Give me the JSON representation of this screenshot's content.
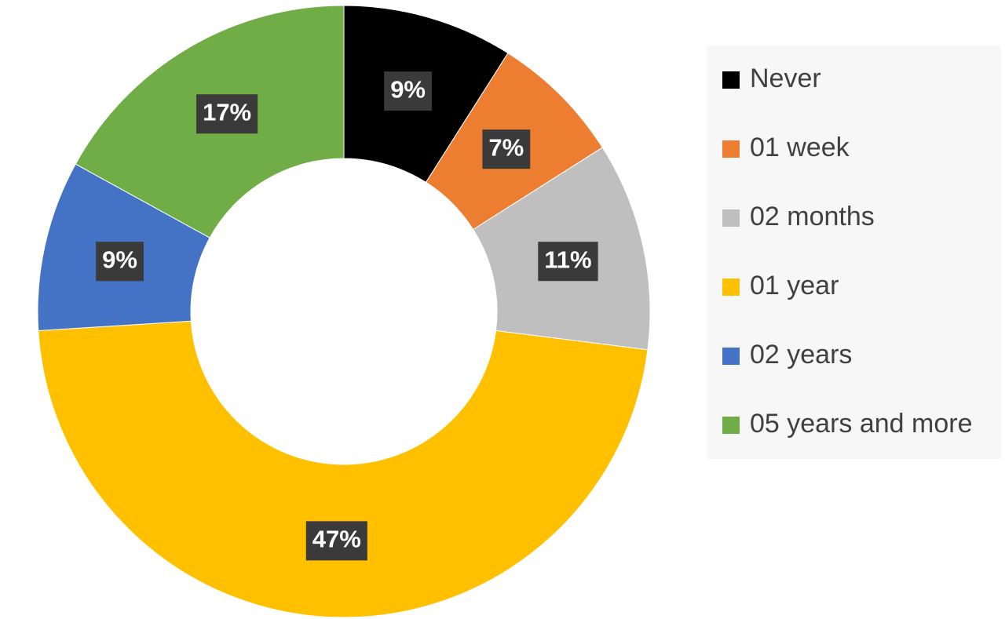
{
  "chart_data": {
    "type": "donut",
    "categories": [
      "Never",
      "01 week",
      "02 months",
      "01 year",
      "02 years",
      "05 years and more"
    ],
    "values": [
      9,
      7,
      11,
      47,
      9,
      17
    ],
    "value_labels": [
      "9%",
      "7%",
      "11%",
      "47%",
      "9%",
      "17%"
    ],
    "colors": [
      "#000000",
      "#ed7d31",
      "#bfbfbf",
      "#ffc000",
      "#4472c4",
      "#70ad47"
    ],
    "legend": "right"
  }
}
